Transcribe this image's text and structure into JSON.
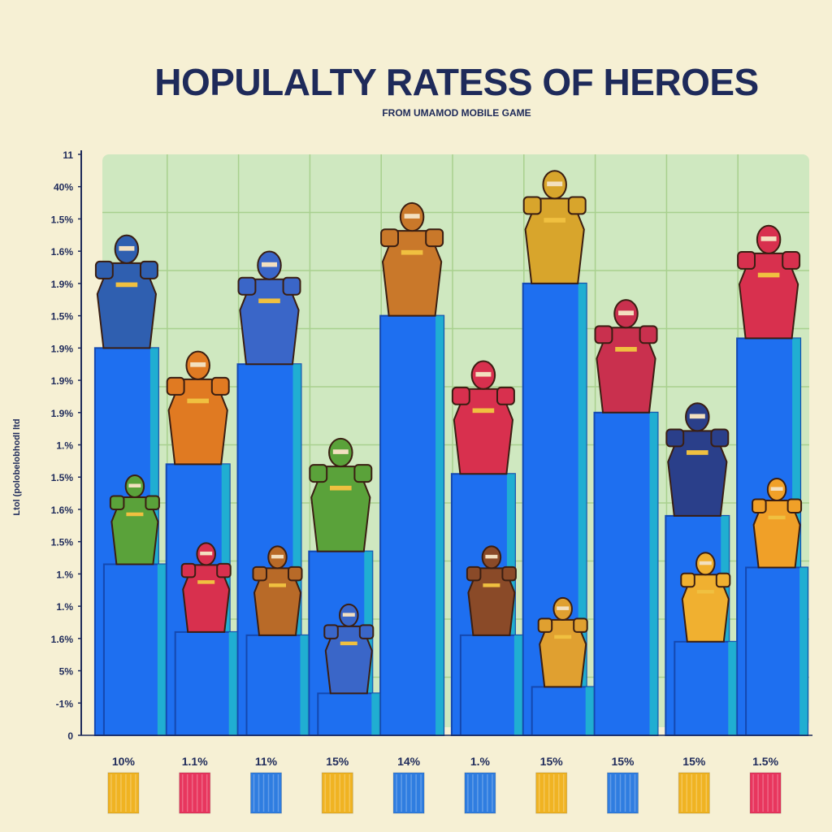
{
  "chart_data": {
    "type": "bar",
    "title": "HOPULALTY RATESS OF HEROES",
    "subtitle": "FROM UMAMOD MOBILE GAME",
    "ylabel": "Ltol (polobelobhodl ltd",
    "ytick_labels": [
      "11",
      "40%",
      "1.5%",
      "1.6%",
      "1.9%",
      "1.5%",
      "1.9%",
      "1.9%",
      "1.9%",
      "1.%",
      "1.5%",
      "1.6%",
      "1.5%",
      "1.%",
      "1.%",
      "1.6%",
      "5%",
      "-1%",
      "0"
    ],
    "categories": [
      "10%",
      "1.1%",
      "11%",
      "15%",
      "14%",
      "1.%",
      "15%",
      "15%",
      "15%",
      "1.5%"
    ],
    "legend_colors": [
      "#f0b322",
      "#e8365e",
      "#2f7de0",
      "#f0b322",
      "#2f7de0",
      "#2f7de0",
      "#f0b322",
      "#2f7de0",
      "#f0b322",
      "#e8365e"
    ],
    "ylim": [
      0,
      18
    ],
    "grid": true,
    "series": [
      {
        "color": "#1e6ff0",
        "values": [
          12,
          8.4,
          11.5,
          5.7,
          13,
          8.1,
          14,
          10,
          6.8,
          12.3
        ]
      },
      {
        "color": "#1e6ff0",
        "values": [
          5.3,
          3.2,
          3.1,
          1.3,
          null,
          3.1,
          1.5,
          null,
          2.9,
          5.2
        ]
      }
    ],
    "hero_colors": [
      "#2f5fb0",
      "#e07a22",
      "#3a66c8",
      "#5aa23a",
      "#c9782a",
      "#d8304e",
      "#d8a52c",
      "#c9304e",
      "#2a3f8a",
      "#d8304e",
      "#5aa23a",
      "#d8304e",
      "#b86a28",
      "#3a66c8",
      "#8a4a28",
      "#e0a030",
      "#f0b030",
      "#f0a028"
    ]
  }
}
